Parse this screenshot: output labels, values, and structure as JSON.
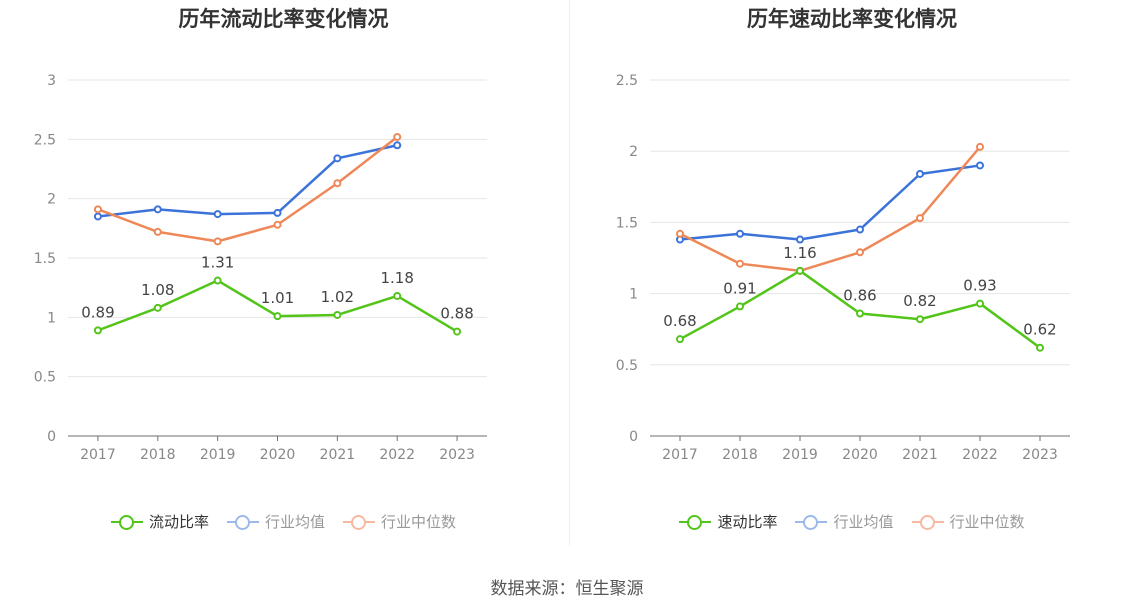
{
  "charts": [
    {
      "title": "历年流动比率变化情况",
      "chart_data": {
        "type": "line",
        "categories": [
          "2017",
          "2018",
          "2019",
          "2020",
          "2021",
          "2022",
          "2023"
        ],
        "ylim": [
          0,
          3
        ],
        "yticks": [
          0,
          0.5,
          1,
          1.5,
          2,
          2.5,
          3
        ],
        "ytick_labels": [
          "0",
          "0.5",
          "1",
          "1.5",
          "2",
          "2.5",
          "3"
        ],
        "grid": true,
        "legend": "bottom",
        "series": [
          {
            "name": "流动比率",
            "color": "#52c41a",
            "values": [
              0.89,
              1.08,
              1.31,
              1.01,
              1.02,
              1.18,
              0.88
            ],
            "labels": [
              "0.89",
              "1.08",
              "1.31",
              "1.01",
              "1.02",
              "1.18",
              "0.88"
            ],
            "highlighted": true
          },
          {
            "name": "行业均值",
            "color": "#3b73d9",
            "values": [
              1.85,
              1.91,
              1.87,
              1.88,
              2.34,
              2.45,
              null
            ]
          },
          {
            "name": "行业中位数",
            "color": "#ee8859",
            "values": [
              1.91,
              1.72,
              1.64,
              1.78,
              2.13,
              2.52,
              null
            ]
          }
        ]
      }
    },
    {
      "title": "历年速动比率变化情况",
      "chart_data": {
        "type": "line",
        "categories": [
          "2017",
          "2018",
          "2019",
          "2020",
          "2021",
          "2022",
          "2023"
        ],
        "ylim": [
          0,
          2.5
        ],
        "yticks": [
          0,
          0.5,
          1,
          1.5,
          2,
          2.5
        ],
        "ytick_labels": [
          "0",
          "0.5",
          "1",
          "1.5",
          "2",
          "2.5"
        ],
        "grid": true,
        "legend": "bottom",
        "series": [
          {
            "name": "速动比率",
            "color": "#52c41a",
            "values": [
              0.68,
              0.91,
              1.16,
              0.86,
              0.82,
              0.93,
              0.62
            ],
            "labels": [
              "0.68",
              "0.91",
              "1.16",
              "0.86",
              "0.82",
              "0.93",
              "0.62"
            ],
            "highlighted": true
          },
          {
            "name": "行业均值",
            "color": "#3b73d9",
            "values": [
              1.38,
              1.42,
              1.38,
              1.45,
              1.84,
              1.9,
              null
            ]
          },
          {
            "name": "行业中位数",
            "color": "#ee8859",
            "values": [
              1.42,
              1.21,
              1.16,
              1.29,
              1.53,
              2.03,
              null
            ]
          }
        ]
      }
    }
  ],
  "legend_faded_colors": {
    "行业均值": "#9db9ec",
    "行业中位数": "#f7b9a0"
  },
  "source": "数据来源：恒生聚源"
}
